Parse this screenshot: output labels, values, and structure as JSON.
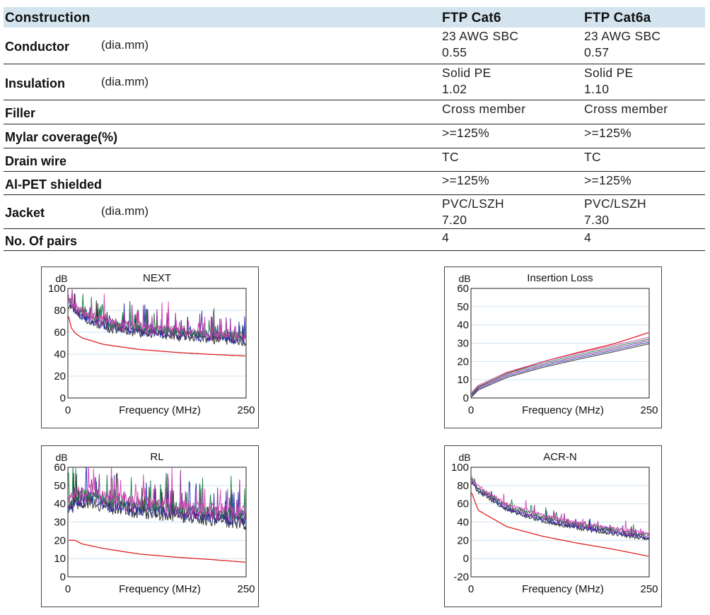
{
  "table": {
    "header": {
      "label": "Construction",
      "col1": "FTP Cat6",
      "col2": "FTP Cat6a"
    },
    "rows": [
      {
        "label": "Conductor",
        "unit": "(dia.mm)",
        "col1": [
          "23 AWG SBC",
          "0.55"
        ],
        "col2": [
          "23 AWG SBC",
          "0.57"
        ]
      },
      {
        "label": "Insulation",
        "unit": "(dia.mm)",
        "col1": [
          "Solid PE",
          "1.02"
        ],
        "col2": [
          "Solid PE",
          "1.10"
        ]
      },
      {
        "label": "Filler",
        "unit": "",
        "col1": [
          "Cross member"
        ],
        "col2": [
          "Cross member"
        ]
      },
      {
        "label": "Mylar coverage(%)",
        "unit": "",
        "col1": [
          ">=125%"
        ],
        "col2": [
          ">=125%"
        ]
      },
      {
        "label": "Drain wire",
        "unit": "",
        "col1": [
          "TC"
        ],
        "col2": [
          "TC"
        ]
      },
      {
        "label": "Al-PET shielded",
        "unit": "",
        "col1": [
          ">=125%"
        ],
        "col2": [
          ">=125%"
        ]
      },
      {
        "label": "Jacket",
        "unit": "(dia.mm)",
        "col1": [
          "PVC/LSZH",
          "7.20"
        ],
        "col2": [
          "PVC/LSZH",
          "7.30"
        ]
      },
      {
        "label": "No. Of pairs",
        "unit": "",
        "col1": [
          "4"
        ],
        "col2": [
          "4"
        ]
      }
    ]
  },
  "colors": {
    "header_bg": "#d3e4ef",
    "limit": "#e02020",
    "measured": [
      "#1a1a1a",
      "#1f2fb0",
      "#8e1a8e",
      "#0e7a3c",
      "#d23fb4"
    ],
    "gridline": "#cfe3f1"
  },
  "chart_data": [
    {
      "type": "line",
      "title": "NEXT",
      "ylabel": "dB",
      "xlabel": "Frequency (MHz)",
      "xlim": [
        0,
        250
      ],
      "ylim": [
        0,
        100
      ],
      "yticks": [
        0,
        20,
        40,
        60,
        80,
        100
      ],
      "xticks": [
        0,
        250
      ],
      "grid": true,
      "series": [
        {
          "role": "limit",
          "x": [
            1,
            5,
            10,
            20,
            50,
            100,
            150,
            200,
            250
          ],
          "y": [
            74.3,
            63.8,
            59.3,
            54.8,
            48.9,
            44.3,
            41.7,
            39.8,
            38.3
          ]
        },
        {
          "role": "measured",
          "x": [
            1,
            10,
            30,
            60,
            100,
            150,
            200,
            250
          ],
          "y": [
            88,
            80,
            72,
            66,
            62,
            59,
            56,
            54
          ]
        }
      ]
    },
    {
      "type": "line",
      "title": "Insertion Loss",
      "ylabel": "dB",
      "xlabel": "Frequency (MHz)",
      "xlim": [
        0,
        250
      ],
      "ylim": [
        0,
        60
      ],
      "yticks": [
        0,
        10,
        20,
        30,
        40,
        50,
        60
      ],
      "xticks": [
        0,
        250
      ],
      "grid": true,
      "series": [
        {
          "role": "limit",
          "x": [
            1,
            10,
            50,
            100,
            150,
            200,
            250
          ],
          "y": [
            2.0,
            6.0,
            13.5,
            19.8,
            24.9,
            29.6,
            35.9
          ]
        },
        {
          "role": "measured",
          "x": [
            1,
            10,
            50,
            100,
            150,
            200,
            250
          ],
          "y": [
            1.8,
            5.6,
            12.6,
            18.2,
            22.8,
            27.0,
            31.5
          ]
        }
      ]
    },
    {
      "type": "line",
      "title": "RL",
      "ylabel": "dB",
      "xlabel": "Frequency (MHz)",
      "xlim": [
        0,
        250
      ],
      "ylim": [
        0,
        60
      ],
      "yticks": [
        0,
        10,
        20,
        30,
        40,
        50,
        60
      ],
      "xticks": [
        0,
        250
      ],
      "grid": true,
      "series": [
        {
          "role": "limit",
          "x": [
            1,
            10,
            20,
            50,
            100,
            150,
            200,
            250
          ],
          "y": [
            20,
            20,
            18,
            15.5,
            12.5,
            10.8,
            9.5,
            8.0
          ]
        },
        {
          "role": "measured",
          "x": [
            1,
            10,
            30,
            60,
            100,
            150,
            200,
            250
          ],
          "y": [
            38,
            42,
            44,
            40,
            38,
            36,
            34,
            32
          ]
        }
      ]
    },
    {
      "type": "line",
      "title": "ACR-N",
      "ylabel": "dB",
      "xlabel": "Frequency (MHz)",
      "xlim": [
        0,
        250
      ],
      "ylim": [
        -20,
        100
      ],
      "yticks": [
        -20,
        0,
        20,
        40,
        60,
        80,
        100
      ],
      "xticks": [
        0,
        250
      ],
      "grid": true,
      "series": [
        {
          "role": "limit",
          "x": [
            1,
            10,
            50,
            100,
            150,
            200,
            250
          ],
          "y": [
            72,
            53,
            35,
            24.5,
            16.8,
            10.2,
            2.4
          ]
        },
        {
          "role": "measured",
          "x": [
            1,
            10,
            50,
            100,
            150,
            200,
            250
          ],
          "y": [
            86,
            76,
            56,
            44,
            36,
            30,
            24
          ]
        }
      ]
    }
  ]
}
